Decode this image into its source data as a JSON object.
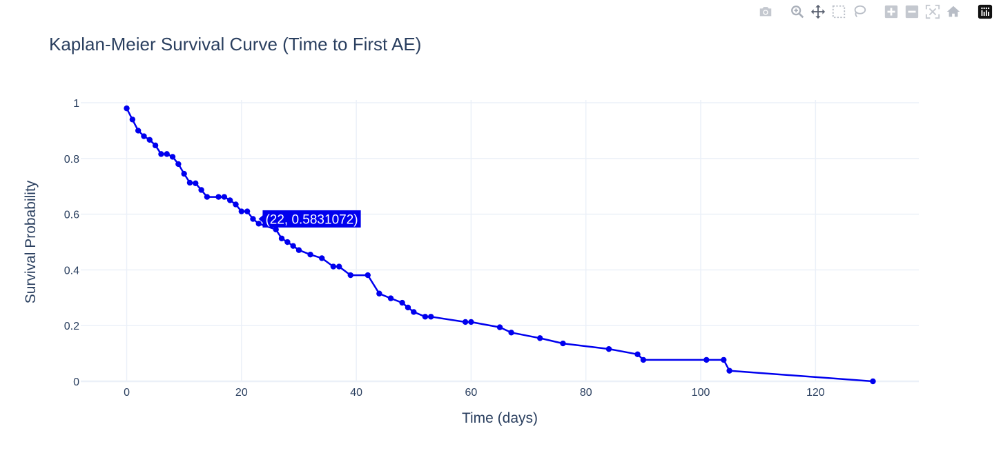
{
  "toolbar": {
    "icons": [
      "camera-icon",
      "zoom-icon",
      "pan-icon",
      "box-select-icon",
      "lasso-select-icon",
      "zoom-in-icon",
      "zoom-out-icon",
      "autoscale-icon",
      "reset-axes-icon",
      "plotly-logo-icon"
    ]
  },
  "colors": {
    "series": "#0000ee",
    "grid": "#ebf0f8",
    "text": "#2a3f5f",
    "hover_bg": "#0000ee"
  },
  "chart_data": {
    "type": "line",
    "title": "Kaplan-Meier Survival Curve (Time to First AE)",
    "xlabel": "Time (days)",
    "ylabel": "Survival Probability",
    "xlim": [
      -8,
      138
    ],
    "ylim": [
      0,
      1.01
    ],
    "xticks": [
      0,
      20,
      40,
      60,
      80,
      100,
      120
    ],
    "yticks": [
      0,
      0.2,
      0.4,
      0.6,
      0.8,
      1
    ],
    "ytick_labels": [
      "0",
      "0.2",
      "0.4",
      "0.6",
      "0.8",
      "1"
    ],
    "grid": true,
    "series": [
      {
        "x": [
          0,
          1,
          2,
          3,
          4,
          5,
          6,
          7,
          8,
          9,
          10,
          11,
          12,
          13,
          14,
          16,
          17,
          18,
          19,
          20,
          21,
          22,
          23,
          26,
          27,
          28,
          29,
          30,
          32,
          34,
          36,
          37,
          39,
          42,
          44,
          46,
          48,
          49,
          50,
          52,
          53,
          59,
          60,
          65,
          67,
          72,
          76,
          84,
          89,
          90,
          101,
          104,
          105,
          130
        ],
        "y": [
          0.98,
          0.94,
          0.9,
          0.88,
          0.867,
          0.847,
          0.816,
          0.816,
          0.806,
          0.78,
          0.745,
          0.713,
          0.711,
          0.687,
          0.662,
          0.662,
          0.662,
          0.65,
          0.635,
          0.61,
          0.61,
          0.583,
          0.566,
          0.545,
          0.513,
          0.5,
          0.486,
          0.471,
          0.455,
          0.442,
          0.412,
          0.412,
          0.381,
          0.381,
          0.315,
          0.298,
          0.282,
          0.265,
          0.249,
          0.232,
          0.232,
          0.213,
          0.213,
          0.194,
          0.175,
          0.155,
          0.136,
          0.116,
          0.097,
          0.077,
          0.077,
          0.077,
          0.038,
          0.0
        ]
      }
    ],
    "hover": {
      "x": 22,
      "y": 0.5831072,
      "label": "(22, 0.5831072)"
    }
  }
}
